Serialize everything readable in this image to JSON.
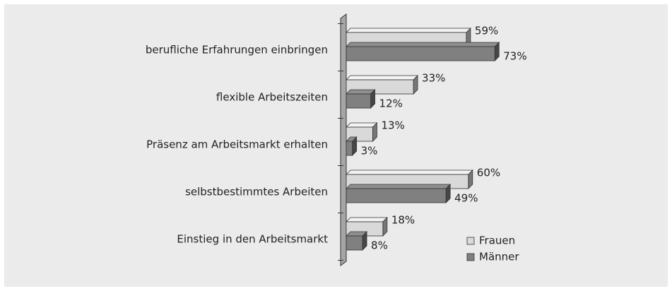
{
  "chart_data": {
    "type": "bar",
    "orientation": "horizontal",
    "categories": [
      "berufliche Erfahrungen einbringen",
      "flexible Arbeitszeiten",
      "Präsenz am Arbeitsmarkt erhalten",
      "selbstbestimmtes Arbeiten",
      "Einstieg in den Arbeitsmarkt"
    ],
    "series": [
      {
        "name": "Frauen",
        "color": "#d9d9d9",
        "values": [
          59,
          33,
          13,
          60,
          18
        ],
        "value_labels": [
          "59%",
          "33%",
          "13%",
          "60%",
          "18%"
        ]
      },
      {
        "name": "Männer",
        "color": "#808080",
        "values": [
          73,
          12,
          3,
          49,
          8
        ],
        "value_labels": [
          "73%",
          "12%",
          "3%",
          "49%",
          "8%"
        ]
      }
    ],
    "xlim": [
      0,
      100
    ],
    "legend": "lower right"
  }
}
